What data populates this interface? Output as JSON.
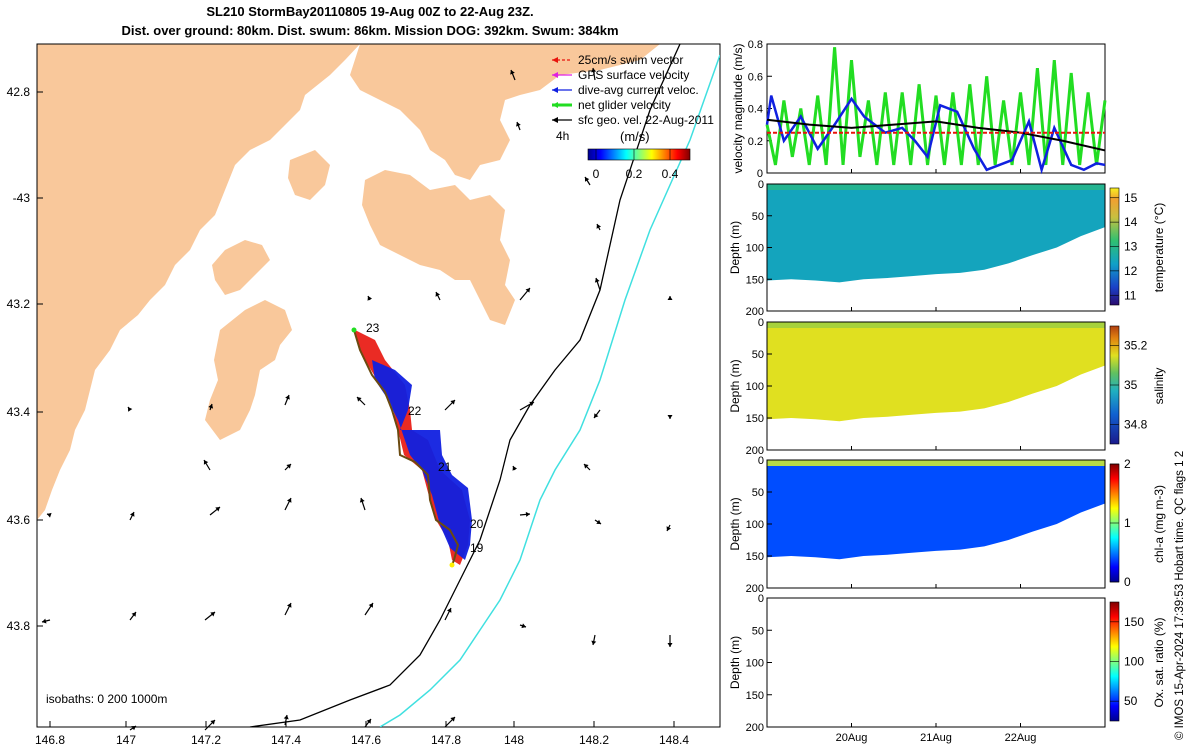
{
  "header": {
    "title_line1": "SL210 StormBay20110805 19-Aug 00Z to 22-Aug 23Z.",
    "title_line2": "Dist. over ground: 80km. Dist. swum: 86km. Mission DOG: 392km. Swum: 384km"
  },
  "credit": "© IMOS 15-Apr-2024 17:39:53 Hobart time. QC flags 1  2",
  "colors": {
    "land": "#f9c89b",
    "swim_vector": "#e8140c",
    "gps_velocity": "#e020e0",
    "dive_avg": "#1020e0",
    "net_velocity": "#22dd22",
    "geo_velocity": "#000000",
    "isobath_200": "#000000",
    "isobath_1000": "#40e0e0"
  },
  "map": {
    "lon_ticks": [
      "146.8",
      "147",
      "147.2",
      "147.4",
      "147.6",
      "147.8",
      "148",
      "148.2",
      "148.4"
    ],
    "lat_ticks": [
      "42.8",
      "-43",
      "43.2",
      "43.4",
      "43.6",
      "43.8"
    ],
    "legend": [
      {
        "label": "25cm/s swim vector",
        "color": "#e8140c"
      },
      {
        "label": "GPS surface velocity",
        "color": "#e020e0"
      },
      {
        "label": "dive-avg current veloc.",
        "color": "#1020e0"
      },
      {
        "label": "net glider velocity",
        "color": "#22dd22"
      },
      {
        "label": "sfc geo. vel. 22-Aug-2011",
        "color": "#000000"
      }
    ],
    "time_step_label": "4h",
    "colorbar_title": "(m/s)",
    "colorbar_ticks": [
      "0",
      "0.2",
      "0.4"
    ],
    "day_labels": [
      "23",
      "22",
      "21",
      "20",
      "19"
    ],
    "isobaths_label": "isobaths: 0   200  1000m"
  },
  "chart_data": [
    {
      "type": "line",
      "title": "",
      "ylabel": "velocity magnitude (m/s)",
      "ylim": [
        0,
        0.8
      ],
      "y_ticks": [
        "0",
        "0.2",
        "0.4",
        "0.6",
        "0.8"
      ],
      "x_ticks": [
        "20Aug",
        "21Aug",
        "22Aug"
      ],
      "x_range_days": [
        19.0,
        23.0
      ],
      "series": [
        {
          "name": "net glider velocity",
          "color": "#22dd22",
          "x": [
            19.0,
            19.1,
            19.2,
            19.3,
            19.4,
            19.5,
            19.6,
            19.7,
            19.8,
            19.9,
            20.0,
            20.1,
            20.2,
            20.3,
            20.4,
            20.5,
            20.6,
            20.7,
            20.8,
            20.9,
            21.0,
            21.1,
            21.2,
            21.3,
            21.4,
            21.5,
            21.6,
            21.7,
            21.8,
            21.9,
            22.0,
            22.1,
            22.2,
            22.3,
            22.4,
            22.5,
            22.6,
            22.7,
            22.8,
            22.9,
            23.0
          ],
          "values": [
            0.3,
            0.05,
            0.45,
            0.1,
            0.4,
            0.05,
            0.48,
            0.05,
            0.78,
            0.05,
            0.7,
            0.1,
            0.45,
            0.05,
            0.5,
            0.05,
            0.5,
            0.05,
            0.55,
            0.05,
            0.48,
            0.05,
            0.5,
            0.05,
            0.55,
            0.05,
            0.6,
            0.05,
            0.45,
            0.05,
            0.5,
            0.05,
            0.65,
            0.05,
            0.7,
            0.05,
            0.62,
            0.05,
            0.5,
            0.05,
            0.45
          ]
        },
        {
          "name": "dive-avg current veloc.",
          "color": "#1020e0",
          "x": [
            19.0,
            19.05,
            19.2,
            19.4,
            19.6,
            19.8,
            20.0,
            20.15,
            20.4,
            20.6,
            20.75,
            20.9,
            21.05,
            21.25,
            21.45,
            21.6,
            21.75,
            21.9,
            22.1,
            22.25,
            22.4,
            22.6,
            22.75,
            22.9,
            23.0
          ],
          "values": [
            0.3,
            0.48,
            0.2,
            0.35,
            0.15,
            0.3,
            0.46,
            0.35,
            0.25,
            0.28,
            0.2,
            0.1,
            0.42,
            0.38,
            0.15,
            0.02,
            0.05,
            0.08,
            0.32,
            0.02,
            0.28,
            0.05,
            0.02,
            0.06,
            0.05
          ]
        },
        {
          "name": "sfc geo. vel.",
          "color": "#000000",
          "x": [
            19.0,
            19.5,
            20.0,
            20.5,
            21.0,
            21.5,
            22.0,
            22.5,
            23.0
          ],
          "values": [
            0.33,
            0.3,
            0.28,
            0.3,
            0.32,
            0.28,
            0.25,
            0.2,
            0.14
          ]
        },
        {
          "name": "25cm/s swim vector",
          "color": "#e8140c",
          "x": [
            19.0,
            23.0
          ],
          "values": [
            0.25,
            0.25
          ]
        }
      ]
    },
    {
      "type": "heatmap",
      "ylabel": "Depth (m)",
      "y_ticks": [
        "0",
        "50",
        "100",
        "150",
        "200"
      ],
      "colorbar_label": "temperature (°C)",
      "colorbar_ticks": [
        "15",
        "14",
        "13",
        "12",
        "11"
      ],
      "clim": [
        10.6,
        15.4
      ],
      "bottom_depth_m": [
        152,
        150,
        152,
        155,
        150,
        148,
        145,
        142,
        140,
        135,
        125,
        112,
        100,
        82,
        68
      ],
      "surface_value": 13.0,
      "bottom_value": 12.4
    },
    {
      "type": "heatmap",
      "ylabel": "Depth (m)",
      "y_ticks": [
        "0",
        "50",
        "100",
        "150",
        "200"
      ],
      "colorbar_label": "salinity",
      "colorbar_ticks": [
        "35.2",
        "35",
        "34.8"
      ],
      "clim": [
        34.7,
        35.3
      ],
      "bottom_depth_m": [
        152,
        150,
        152,
        155,
        150,
        148,
        145,
        142,
        140,
        135,
        125,
        112,
        100,
        82,
        68
      ],
      "surface_value": 35.1,
      "bottom_value": 35.15
    },
    {
      "type": "heatmap",
      "ylabel": "Depth (m)",
      "y_ticks": [
        "0",
        "50",
        "100",
        "150",
        "200"
      ],
      "colorbar_label": "chl-a (mg m-3)",
      "colorbar_ticks": [
        "2",
        "1",
        "0"
      ],
      "clim": [
        0,
        2
      ],
      "bottom_depth_m": [
        152,
        150,
        152,
        155,
        150,
        148,
        145,
        142,
        140,
        135,
        125,
        112,
        100,
        82,
        68
      ],
      "surface_value": 1.2,
      "bottom_value": 0.4
    },
    {
      "type": "heatmap",
      "ylabel": "Depth (m)",
      "y_ticks": [
        "0",
        "50",
        "100",
        "150",
        "200"
      ],
      "x_ticks": [
        "20Aug",
        "21Aug",
        "22Aug"
      ],
      "colorbar_label": "Ox. sat. ratio (%)",
      "colorbar_ticks": [
        "150",
        "100",
        "50"
      ],
      "clim": [
        25,
        175
      ]
    }
  ]
}
